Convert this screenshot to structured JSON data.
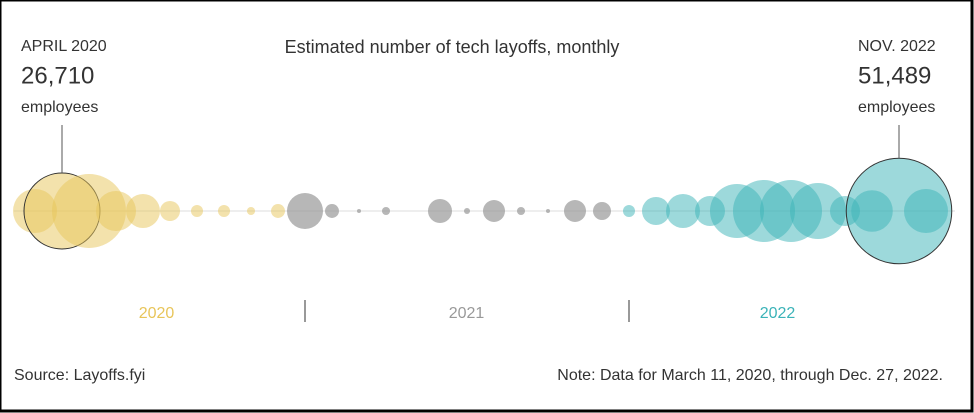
{
  "chart_data": {
    "type": "bubble",
    "title": "Estimated number of tech layoffs, monthly",
    "source": "Source: Layoffs.fyi",
    "note": "Note: Data for March 11, 2020, through Dec. 27, 2022.",
    "series": [
      {
        "name": "2020",
        "color": "#e8c55a",
        "values": [
          8950,
          26710,
          25300,
          7400,
          5340,
          1850,
          670,
          670,
          300,
          900
        ],
        "value_labels": [
          null,
          "26,710",
          null,
          null,
          null,
          null,
          null,
          null,
          null,
          null
        ],
        "annotations": [
          null,
          {
            "title": "APRIL 2020",
            "text": "employees"
          },
          null,
          null,
          null,
          null,
          null,
          null,
          null,
          null
        ]
      },
      {
        "name": "2021",
        "color": "#999999",
        "values": [
          6000,
          900,
          75,
          300,
          0,
          2670,
          170,
          2240,
          300,
          75,
          2240,
          1500
        ],
        "value_labels": [
          null,
          null,
          null,
          null,
          null,
          null,
          null,
          null,
          null,
          null,
          null,
          null
        ],
        "annotations": [
          null,
          null,
          null,
          null,
          null,
          null,
          null,
          null,
          null,
          null,
          null,
          null
        ]
      },
      {
        "name": "2022",
        "color": "#3bb3b8",
        "values": [
          670,
          3630,
          5340,
          4160,
          13500,
          17800,
          17800,
          14500,
          4160,
          8000,
          51489,
          8950
        ],
        "value_labels": [
          null,
          null,
          null,
          null,
          null,
          null,
          null,
          null,
          null,
          null,
          "51,489",
          null
        ],
        "annotations": [
          null,
          null,
          null,
          null,
          null,
          null,
          null,
          null,
          null,
          null,
          {
            "title": "NOV. 2022",
            "text": "employees"
          },
          null
        ]
      }
    ]
  }
}
